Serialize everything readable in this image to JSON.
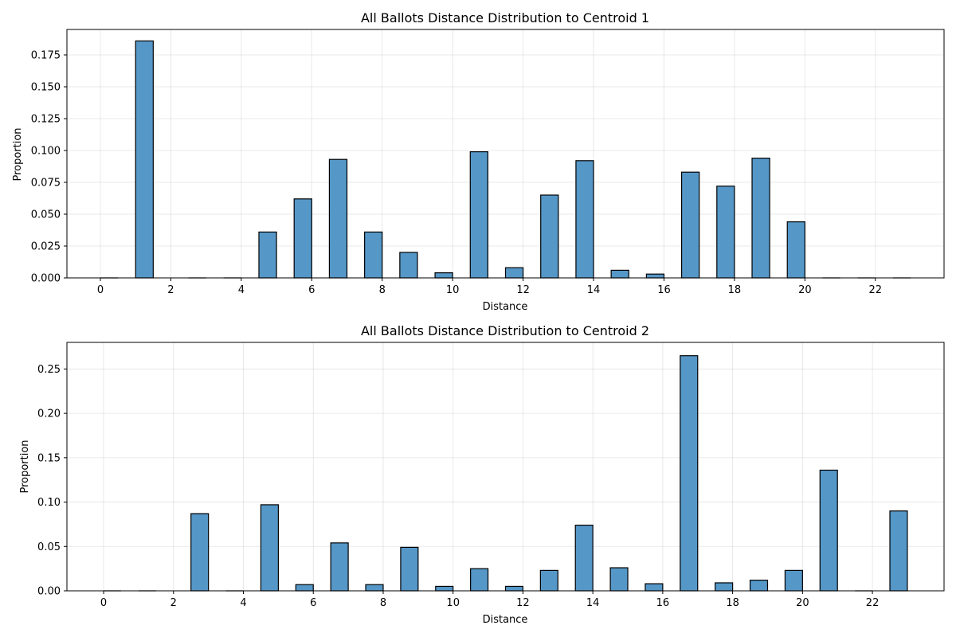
{
  "chart_data": [
    {
      "type": "bar",
      "title": "All Ballots Distance Distribution to Centroid 1",
      "xlabel": "Distance",
      "ylabel": "Proportion",
      "xlim": [
        -0.95,
        23.95
      ],
      "ylim": [
        0,
        0.195
      ],
      "xticks": [
        0,
        2,
        4,
        6,
        8,
        10,
        12,
        14,
        16,
        18,
        20,
        22
      ],
      "yticks": [
        0.0,
        0.025,
        0.05,
        0.075,
        0.1,
        0.125,
        0.15,
        0.175
      ],
      "ytick_labels": [
        "0.000",
        "0.025",
        "0.050",
        "0.075",
        "0.100",
        "0.125",
        "0.150",
        "0.175"
      ],
      "bin_width": 0.5,
      "bins_start": [
        0,
        1,
        2,
        3,
        4,
        5,
        6,
        7,
        8,
        9,
        10,
        11,
        12,
        13,
        14,
        15,
        16,
        17,
        18,
        19,
        20,
        21,
        22
      ],
      "bar_offset": 1.5,
      "values": [
        0,
        0.186,
        0,
        0,
        0.036,
        0.062,
        0.093,
        0.036,
        0.02,
        0.004,
        0.099,
        0.008,
        0.065,
        0.092,
        0.006,
        0.003,
        0.083,
        0.072,
        0.094,
        0.044,
        0,
        0,
        0
      ],
      "grid": true,
      "color": "#5597c7"
    },
    {
      "type": "bar",
      "title": "All Ballots Distance Distribution to Centroid 2",
      "xlabel": "Distance",
      "ylabel": "Proportion",
      "xlim": [
        -1.05,
        24.05
      ],
      "ylim": [
        0,
        0.28
      ],
      "xticks": [
        0,
        2,
        4,
        6,
        8,
        10,
        12,
        14,
        16,
        18,
        20,
        22
      ],
      "yticks": [
        0.0,
        0.05,
        0.1,
        0.15,
        0.2,
        0.25
      ],
      "ytick_labels": [
        "0.00",
        "0.05",
        "0.10",
        "0.15",
        "0.20",
        "0.25"
      ],
      "bin_width": 0.5,
      "bins_start": [
        0,
        1,
        2,
        3,
        4,
        5,
        6,
        7,
        8,
        9,
        10,
        11,
        12,
        13,
        14,
        15,
        16,
        17,
        18,
        19,
        20,
        21,
        22
      ],
      "bar_offset": 2,
      "values": [
        0,
        0,
        0.087,
        0,
        0.097,
        0.007,
        0.054,
        0.007,
        0.049,
        0.005,
        0.025,
        0.005,
        0.023,
        0.074,
        0.026,
        0.008,
        0.265,
        0.009,
        0.012,
        0.023,
        0.136,
        0,
        0.09
      ],
      "grid": true,
      "color": "#5597c7"
    }
  ]
}
